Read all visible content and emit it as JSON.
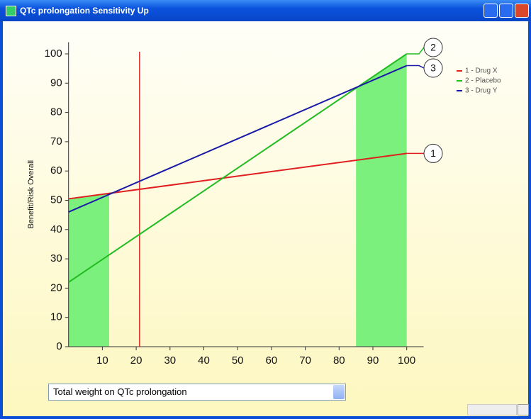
{
  "window": {
    "title": "QTc prolongation Sensitivity Up"
  },
  "chart_data": {
    "type": "line",
    "y_label": "Benefit/Risk Overall",
    "x": [
      0,
      100
    ],
    "series": [
      {
        "name": "1 - Drug X",
        "color": "#e02020",
        "values": [
          50.5,
          66
        ],
        "end_label": "1"
      },
      {
        "name": "2 - Placebo",
        "color": "#22bb22",
        "values": [
          22,
          100
        ],
        "end_label": "2"
      },
      {
        "name": "3 - Drug Y",
        "color": "#1a1aa8",
        "values": [
          46,
          96
        ],
        "end_label": "3"
      }
    ],
    "highlight_ranges": [
      [
        0,
        12
      ],
      [
        85,
        100
      ]
    ],
    "highlight_color": "#7cf07c",
    "marker_x": 21,
    "marker_color": "#e02020",
    "xlim": [
      0,
      105
    ],
    "ylim": [
      0,
      104
    ],
    "xticks": [
      10,
      20,
      30,
      40,
      50,
      60,
      70,
      80,
      90,
      100
    ],
    "yticks": [
      0,
      10,
      20,
      30,
      40,
      50,
      60,
      70,
      80,
      90,
      100
    ]
  },
  "dropdown": {
    "text": "Total weight on QTc prolongation"
  }
}
